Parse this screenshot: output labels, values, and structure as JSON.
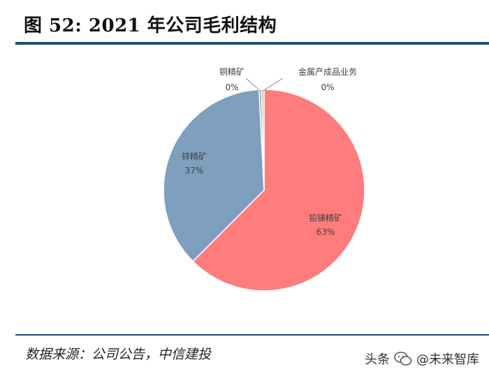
{
  "header": {
    "title": "图 52: 2021 年公司毛利结构"
  },
  "footer": {
    "source": "数据来源：公司公告，中信建投",
    "watermark_prefix": "头条",
    "watermark_handle": "@未来智库"
  },
  "colors": {
    "rule": "#1f4e79",
    "slices": [
      "#ff7c7c",
      "#7f9fbf",
      "#a6a6a6",
      "#c0c0c0"
    ]
  },
  "chart_data": {
    "type": "pie",
    "title": "",
    "labels": [
      "铅锑精矿",
      "锌精矿",
      "铜精矿",
      "金属产成品业务"
    ],
    "values": [
      63,
      37,
      0.4,
      0.4
    ],
    "display_labels": [
      "63%",
      "37%",
      "0%",
      "0%"
    ],
    "start": "top, clockwise",
    "legend": "none"
  }
}
